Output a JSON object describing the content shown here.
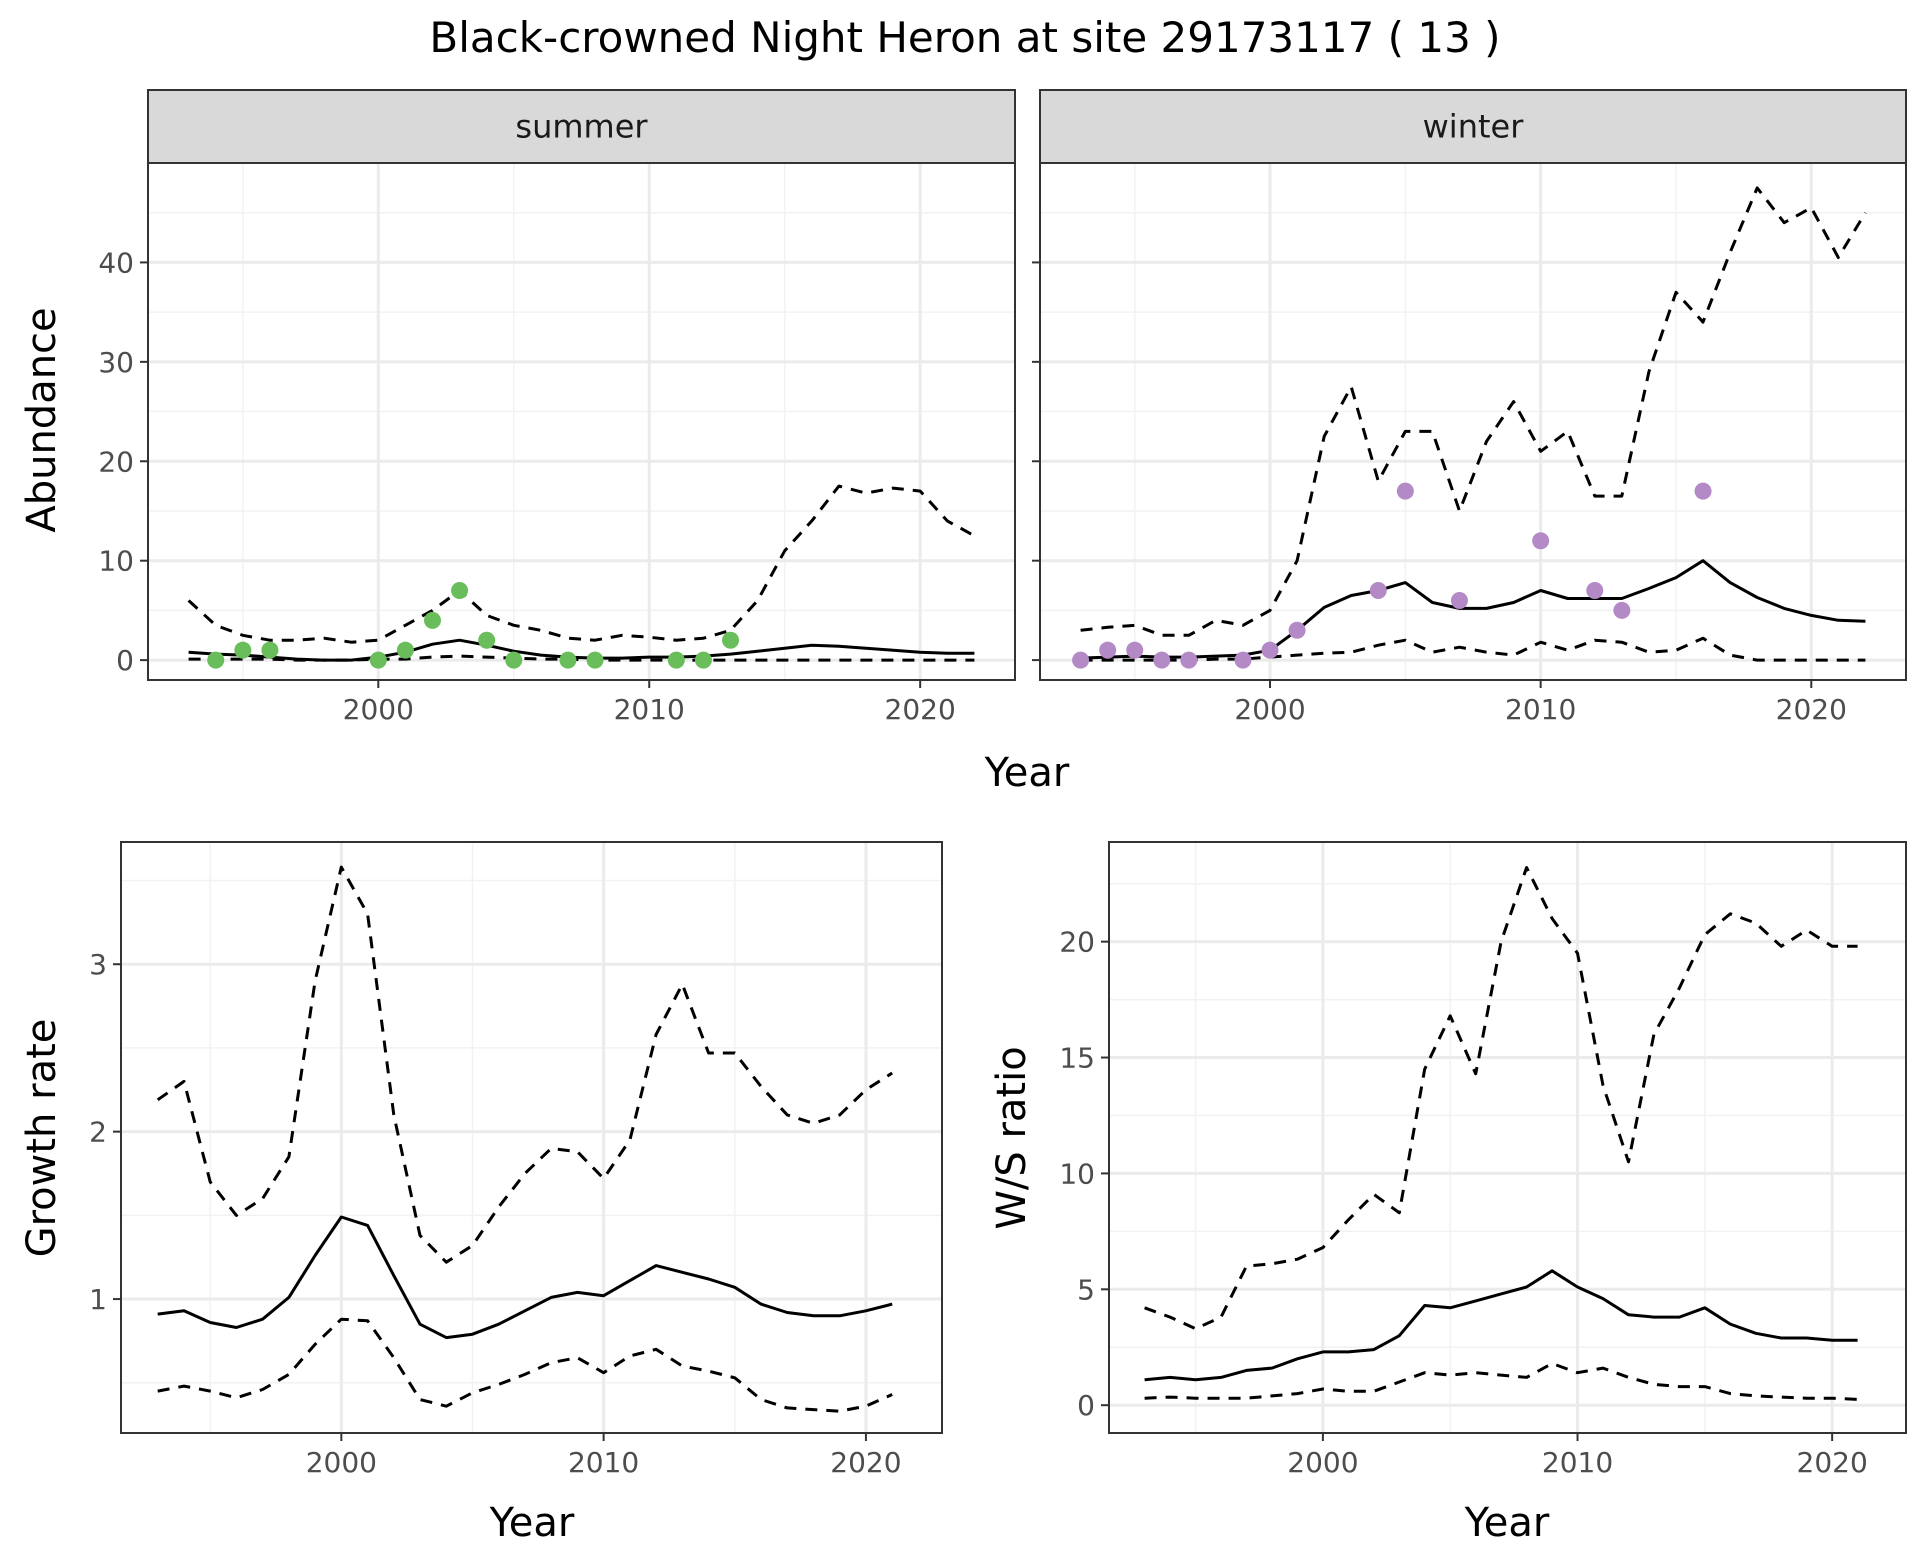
{
  "title": "Black-crowned Night Heron at site 29173117 ( 13 )",
  "chart_data": [
    {
      "type": "line",
      "facet": "summer",
      "xlabel": "Year",
      "ylabel": "Abundance",
      "xlim": [
        1991.5,
        2023.5
      ],
      "ylim": [
        -2,
        50
      ],
      "xticks": [
        2000,
        2010,
        2020
      ],
      "yticks": [
        0,
        10,
        20,
        30,
        40
      ],
      "points_color": "#6abd5b",
      "x": [
        1993,
        1994,
        1995,
        1996,
        1997,
        1998,
        1999,
        2000,
        2001,
        2002,
        2003,
        2004,
        2005,
        2006,
        2007,
        2008,
        2009,
        2010,
        2011,
        2012,
        2013,
        2014,
        2015,
        2016,
        2017,
        2018,
        2019,
        2020,
        2021,
        2022
      ],
      "series": [
        {
          "style": "solid",
          "values": [
            0.8,
            0.6,
            0.5,
            0.3,
            0.1,
            0.0,
            0.0,
            0.3,
            0.8,
            1.6,
            2.0,
            1.5,
            0.9,
            0.5,
            0.3,
            0.2,
            0.2,
            0.3,
            0.3,
            0.4,
            0.6,
            0.9,
            1.2,
            1.5,
            1.4,
            1.2,
            1.0,
            0.8,
            0.7,
            0.7
          ]
        },
        {
          "style": "dashed",
          "values": [
            6.0,
            3.5,
            2.5,
            2.0,
            2.0,
            2.2,
            1.8,
            2.0,
            3.5,
            5.0,
            7.0,
            4.5,
            3.5,
            3.0,
            2.2,
            2.0,
            2.5,
            2.3,
            2.0,
            2.2,
            3.0,
            6.0,
            11.0,
            14.0,
            17.5,
            16.8,
            17.3,
            17.0,
            14.0,
            12.5
          ]
        },
        {
          "style": "dashed",
          "values": [
            0.1,
            0.1,
            0.1,
            0.1,
            0.0,
            0.0,
            0.0,
            0.1,
            0.1,
            0.3,
            0.4,
            0.3,
            0.2,
            0.1,
            0.1,
            0.0,
            0.0,
            0.0,
            0.0,
            0.0,
            0.0,
            0.0,
            0.0,
            0.0,
            0.0,
            0.0,
            0.0,
            0.0,
            0.0,
            0.0
          ]
        }
      ],
      "points": [
        [
          1994,
          0
        ],
        [
          1995,
          1
        ],
        [
          1996,
          1
        ],
        [
          2000,
          0
        ],
        [
          2001,
          1
        ],
        [
          2002,
          4
        ],
        [
          2003,
          7
        ],
        [
          2004,
          2
        ],
        [
          2005,
          0
        ],
        [
          2007,
          0
        ],
        [
          2008,
          0
        ],
        [
          2011,
          0
        ],
        [
          2012,
          0
        ],
        [
          2013,
          2
        ]
      ]
    },
    {
      "type": "line",
      "facet": "winter",
      "xlabel": "Year",
      "ylabel": "Abundance",
      "xlim": [
        1991.5,
        2023.5
      ],
      "ylim": [
        -2,
        50
      ],
      "xticks": [
        2000,
        2010,
        2020
      ],
      "yticks": [
        0,
        10,
        20,
        30,
        40
      ],
      "points_color": "#b48ac6",
      "x": [
        1993,
        1994,
        1995,
        1996,
        1997,
        1998,
        1999,
        2000,
        2001,
        2002,
        2003,
        2004,
        2005,
        2006,
        2007,
        2008,
        2009,
        2010,
        2011,
        2012,
        2013,
        2014,
        2015,
        2016,
        2017,
        2018,
        2019,
        2020,
        2021,
        2022
      ],
      "series": [
        {
          "style": "solid",
          "values": [
            0.2,
            0.3,
            0.4,
            0.3,
            0.3,
            0.4,
            0.5,
            1.0,
            3.0,
            5.3,
            6.5,
            7.0,
            7.8,
            5.8,
            5.2,
            5.2,
            5.8,
            7.0,
            6.2,
            6.2,
            6.2,
            7.2,
            8.3,
            10.0,
            7.8,
            6.3,
            5.2,
            4.5,
            4.0,
            3.9
          ]
        },
        {
          "style": "dashed",
          "values": [
            3.0,
            3.3,
            3.5,
            2.5,
            2.5,
            4.0,
            3.5,
            5.0,
            10.0,
            22.5,
            27.5,
            18.0,
            23.0,
            23.0,
            15.0,
            22.0,
            26.0,
            21.0,
            23.0,
            16.5,
            16.5,
            29.0,
            37.0,
            34.0,
            41.0,
            47.5,
            44.0,
            45.5,
            40.5,
            45.0
          ]
        },
        {
          "style": "dashed",
          "values": [
            0.0,
            0.0,
            0.0,
            0.0,
            0.0,
            0.1,
            0.1,
            0.3,
            0.5,
            0.7,
            0.8,
            1.5,
            2.0,
            0.8,
            1.3,
            0.8,
            0.5,
            1.8,
            1.0,
            2.0,
            1.8,
            0.8,
            1.0,
            2.2,
            0.5,
            0.0,
            0.0,
            0.0,
            0.0,
            0.0
          ]
        }
      ],
      "points": [
        [
          1993,
          0
        ],
        [
          1994,
          1
        ],
        [
          1995,
          1
        ],
        [
          1996,
          0
        ],
        [
          1997,
          0
        ],
        [
          1999,
          0
        ],
        [
          2000,
          1
        ],
        [
          2001,
          3
        ],
        [
          2004,
          7
        ],
        [
          2005,
          17
        ],
        [
          2007,
          6
        ],
        [
          2010,
          12
        ],
        [
          2012,
          7
        ],
        [
          2013,
          5
        ],
        [
          2016,
          17
        ]
      ]
    },
    {
      "type": "line",
      "facet": "",
      "xlabel": "Year",
      "ylabel": "Growth rate",
      "xlim": [
        1991.6,
        2022.9
      ],
      "ylim": [
        0.2,
        3.73
      ],
      "xticks": [
        2000,
        2010,
        2020
      ],
      "yticks": [
        1,
        2,
        3
      ],
      "x": [
        1993,
        1994,
        1995,
        1996,
        1997,
        1998,
        1999,
        2000,
        2001,
        2002,
        2003,
        2004,
        2005,
        2006,
        2007,
        2008,
        2009,
        2010,
        2011,
        2012,
        2013,
        2014,
        2015,
        2016,
        2017,
        2018,
        2019,
        2020,
        2021
      ],
      "series": [
        {
          "style": "solid",
          "values": [
            0.91,
            0.93,
            0.86,
            0.83,
            0.88,
            1.01,
            1.26,
            1.49,
            1.44,
            1.14,
            0.85,
            0.77,
            0.79,
            0.85,
            0.93,
            1.01,
            1.04,
            1.02,
            1.11,
            1.2,
            1.16,
            1.12,
            1.07,
            0.97,
            0.92,
            0.9,
            0.9,
            0.93,
            0.97
          ]
        },
        {
          "style": "dashed",
          "values": [
            2.19,
            2.3,
            1.7,
            1.5,
            1.6,
            1.85,
            2.9,
            3.58,
            3.3,
            2.1,
            1.38,
            1.22,
            1.32,
            1.55,
            1.75,
            1.9,
            1.88,
            1.72,
            1.95,
            2.58,
            2.88,
            2.47,
            2.47,
            2.27,
            2.1,
            2.05,
            2.1,
            2.25,
            2.35
          ]
        },
        {
          "style": "dashed",
          "values": [
            0.45,
            0.48,
            0.45,
            0.41,
            0.46,
            0.55,
            0.73,
            0.88,
            0.87,
            0.65,
            0.4,
            0.36,
            0.44,
            0.49,
            0.55,
            0.62,
            0.65,
            0.56,
            0.66,
            0.7,
            0.6,
            0.57,
            0.53,
            0.4,
            0.35,
            0.34,
            0.33,
            0.36,
            0.43
          ]
        }
      ]
    },
    {
      "type": "line",
      "facet": "",
      "xlabel": "Year",
      "ylabel": "W/S ratio",
      "xlim": [
        1991.6,
        2022.9
      ],
      "ylim": [
        -1.2,
        24.3
      ],
      "xticks": [
        2000,
        2010,
        2020
      ],
      "yticks": [
        0,
        5,
        10,
        15,
        20
      ],
      "x": [
        1993,
        1994,
        1995,
        1996,
        1997,
        1998,
        1999,
        2000,
        2001,
        2002,
        2003,
        2004,
        2005,
        2006,
        2007,
        2008,
        2009,
        2010,
        2011,
        2012,
        2013,
        2014,
        2015,
        2016,
        2017,
        2018,
        2019,
        2020,
        2021
      ],
      "series": [
        {
          "style": "solid",
          "values": [
            1.1,
            1.2,
            1.1,
            1.2,
            1.5,
            1.6,
            2.0,
            2.3,
            2.3,
            2.4,
            3.0,
            4.3,
            4.2,
            4.5,
            4.8,
            5.1,
            5.8,
            5.1,
            4.6,
            3.9,
            3.8,
            3.8,
            4.2,
            3.5,
            3.1,
            2.9,
            2.9,
            2.8,
            2.8
          ]
        },
        {
          "style": "dashed",
          "values": [
            4.2,
            3.8,
            3.3,
            3.8,
            6.0,
            6.1,
            6.3,
            6.8,
            8.0,
            9.1,
            8.3,
            14.5,
            16.8,
            14.3,
            20.0,
            23.2,
            21.0,
            19.5,
            13.8,
            10.5,
            16.0,
            18.0,
            20.3,
            21.2,
            20.8,
            19.8,
            20.5,
            19.8,
            19.8
          ]
        },
        {
          "style": "dashed",
          "values": [
            0.3,
            0.35,
            0.3,
            0.3,
            0.3,
            0.4,
            0.5,
            0.7,
            0.6,
            0.6,
            1.0,
            1.4,
            1.3,
            1.4,
            1.3,
            1.2,
            1.8,
            1.4,
            1.6,
            1.2,
            0.9,
            0.8,
            0.8,
            0.5,
            0.4,
            0.35,
            0.3,
            0.3,
            0.25
          ]
        }
      ]
    }
  ]
}
